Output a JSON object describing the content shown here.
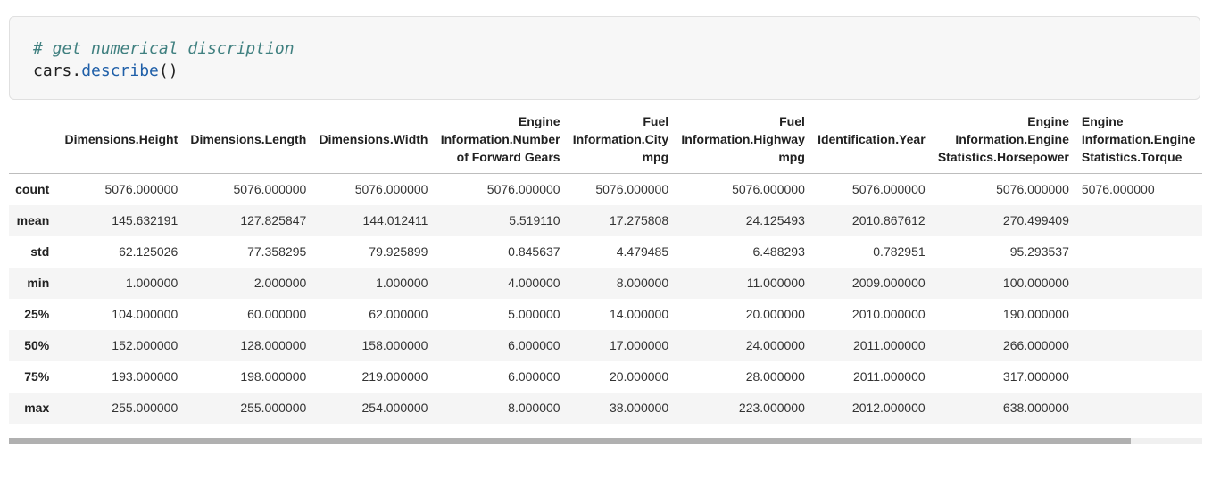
{
  "code": {
    "comment": "# get numerical discription",
    "line2_var": "cars",
    "line2_dot": ".",
    "line2_method": "describe",
    "line2_parens": "()"
  },
  "table": {
    "columns": [
      "",
      "Dimensions.Height",
      "Dimensions.Length",
      "Dimensions.Width",
      "Engine Information.Number of Forward Gears",
      "Fuel Information.City mpg",
      "Fuel Information.Highway mpg",
      "Identification.Year",
      "Engine Information.Engine Statistics.Horsepower",
      "Engine Information.Engine Statistics.Torque"
    ],
    "rows": [
      {
        "label": "count",
        "values": [
          "5076.000000",
          "5076.000000",
          "5076.000000",
          "5076.000000",
          "5076.000000",
          "5076.000000",
          "5076.000000",
          "5076.000000",
          "5076.000000"
        ]
      },
      {
        "label": "mean",
        "values": [
          "145.632191",
          "127.825847",
          "144.012411",
          "5.519110",
          "17.275808",
          "24.125493",
          "2010.867612",
          "270.499409",
          ""
        ]
      },
      {
        "label": "std",
        "values": [
          "62.125026",
          "77.358295",
          "79.925899",
          "0.845637",
          "4.479485",
          "6.488293",
          "0.782951",
          "95.293537",
          ""
        ]
      },
      {
        "label": "min",
        "values": [
          "1.000000",
          "2.000000",
          "1.000000",
          "4.000000",
          "8.000000",
          "11.000000",
          "2009.000000",
          "100.000000",
          ""
        ]
      },
      {
        "label": "25%",
        "values": [
          "104.000000",
          "60.000000",
          "62.000000",
          "5.000000",
          "14.000000",
          "20.000000",
          "2010.000000",
          "190.000000",
          ""
        ]
      },
      {
        "label": "50%",
        "values": [
          "152.000000",
          "128.000000",
          "158.000000",
          "6.000000",
          "17.000000",
          "24.000000",
          "2011.000000",
          "266.000000",
          ""
        ]
      },
      {
        "label": "75%",
        "values": [
          "193.000000",
          "198.000000",
          "219.000000",
          "6.000000",
          "20.000000",
          "28.000000",
          "2011.000000",
          "317.000000",
          ""
        ]
      },
      {
        "label": "max",
        "values": [
          "255.000000",
          "255.000000",
          "254.000000",
          "8.000000",
          "38.000000",
          "223.000000",
          "2012.000000",
          "638.000000",
          ""
        ]
      }
    ]
  },
  "scrollbar": {
    "position_fraction": 0.0,
    "visible_fraction": 0.94
  }
}
